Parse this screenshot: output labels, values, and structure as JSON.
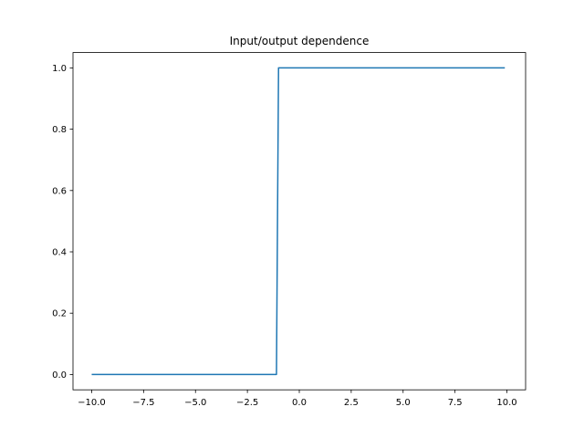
{
  "chart_data": {
    "type": "line",
    "title": "Input/output dependence",
    "xlabel": "",
    "ylabel": "",
    "xlim": [
      -10.9,
      10.9
    ],
    "ylim": [
      -0.05,
      1.05
    ],
    "x_ticks": [
      -10.0,
      -7.5,
      -5.0,
      -2.5,
      0.0,
      2.5,
      5.0,
      7.5,
      10.0
    ],
    "x_tick_labels": [
      "−10.0",
      "−7.5",
      "−5.0",
      "−2.5",
      "0.0",
      "2.5",
      "5.0",
      "7.5",
      "10.0"
    ],
    "y_ticks": [
      0.0,
      0.2,
      0.4,
      0.6,
      0.8,
      1.0
    ],
    "y_tick_labels": [
      "0.0",
      "0.2",
      "0.4",
      "0.6",
      "0.8",
      "1.0"
    ],
    "grid": false,
    "series": [
      {
        "color": "#1f77b4",
        "x": [
          -10.0,
          -1.1,
          -1.0,
          9.9
        ],
        "y": [
          0.0,
          0.0,
          1.0,
          1.0
        ]
      }
    ]
  }
}
